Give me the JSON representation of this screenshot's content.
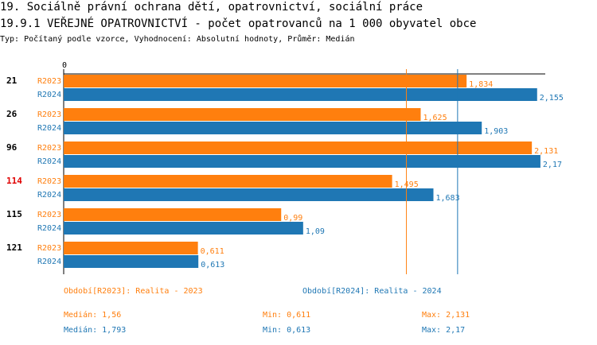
{
  "header": {
    "title1": "19. Sociálně právní ochrana dětí, opatrovnictví, sociální práce",
    "title2": "19.9.1 VEŘEJNÉ OPATROVNICTVÍ - počet opatrovanců na 1 000 obyvatel obce",
    "subtitle": "Typ: Počítaný podle vzorce, Vyhodnocení: Absolutní hodnoty, Průměr: Medián"
  },
  "chart_data": {
    "type": "bar",
    "orientation": "horizontal",
    "axis_origin_label": "0",
    "xlim": [
      0,
      2.3
    ],
    "categories": [
      "21",
      "26",
      "96",
      "114",
      "115",
      "121"
    ],
    "highlight_category": "114",
    "series": [
      {
        "name": "R2023",
        "color": "#ff7f0e",
        "values": [
          1.834,
          1.625,
          2.131,
          1.495,
          0.99,
          0.611
        ],
        "labels": [
          "1,834",
          "1,625",
          "2,131",
          "1,495",
          "0,99",
          "0,611"
        ]
      },
      {
        "name": "R2024",
        "color": "#1f77b4",
        "values": [
          2.155,
          1.903,
          2.17,
          1.683,
          1.09,
          0.613
        ],
        "labels": [
          "2,155",
          "1,903",
          "2,17",
          "1,683",
          "1,09",
          "0,613"
        ]
      }
    ],
    "median_lines": [
      {
        "series": "R2023",
        "value": 1.56,
        "color": "#ff7f0e"
      },
      {
        "series": "R2024",
        "value": 1.793,
        "color": "#1f77b4"
      }
    ]
  },
  "legend": {
    "r2023": "Období[R2023]: Realita - 2023",
    "r2024": "Období[R2024]: Realita - 2024"
  },
  "stats": {
    "r2023": {
      "median": "Medián: 1,56",
      "min": "Min: 0,611",
      "max": "Max: 2,131"
    },
    "r2024": {
      "median": "Medián: 1,793",
      "min": "Min: 0,613",
      "max": "Max: 2,17"
    }
  }
}
